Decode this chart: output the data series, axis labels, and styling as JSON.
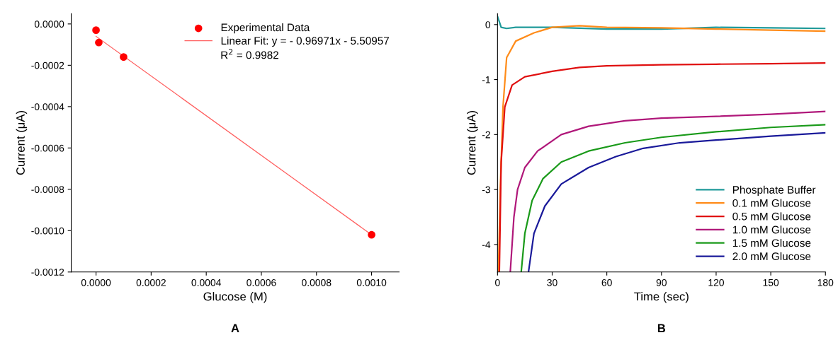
{
  "chart_data": [
    {
      "type": "scatter",
      "xlabel": "Glucose (M)",
      "ylabel": "Current (μA)",
      "x": [
        0,
        1e-05,
        0.0001,
        0.001
      ],
      "xlim": [
        -9e-05,
        0.0011
      ],
      "ylim": [
        -0.0012,
        5e-05
      ],
      "xticks": [
        {
          "value": 0,
          "label": "0.0000"
        },
        {
          "value": 0.0002,
          "label": "0.0002"
        },
        {
          "value": 0.0004,
          "label": "0.0004"
        },
        {
          "value": 0.0006,
          "label": "0.0006"
        },
        {
          "value": 0.0008,
          "label": "0.0008"
        },
        {
          "value": 0.001,
          "label": "0.0010"
        }
      ],
      "yticks": [
        {
          "value": 0,
          "label": "0.0000"
        },
        {
          "value": -0.0002,
          "label": "-0.0002"
        },
        {
          "value": -0.0004,
          "label": "-0.0004"
        },
        {
          "value": -0.0006,
          "label": "-0.0006"
        },
        {
          "value": -0.0008,
          "label": "-0.0008"
        },
        {
          "value": -0.001,
          "label": "-0.0010"
        },
        {
          "value": -0.0012,
          "label": "-0.0012"
        }
      ],
      "series": [
        {
          "name": "Experimental Data",
          "color": "#ff0000",
          "type": "scatter",
          "marker": "circle",
          "values": [
            -3e-05,
            -9e-05,
            -0.00016,
            -0.00102
          ]
        },
        {
          "name": "Linear Fit: y = - 0.96971x - 5.50957",
          "color": "#ff6060",
          "type": "line",
          "x": [
            0,
            0.001
          ],
          "values": [
            -6e-05,
            -0.00102
          ]
        }
      ],
      "annotations": [
        "R$^{2}$ = 0.9982",
        "A"
      ],
      "legend": "top right",
      "grid": false
    },
    {
      "type": "line",
      "xlabel": "Time (sec)",
      "ylabel": "Current (μA)",
      "xlim": [
        0,
        180
      ],
      "ylim": [
        -4.5,
        0.2
      ],
      "xticks": [
        0,
        30,
        60,
        90,
        120,
        150,
        180
      ],
      "yticks": [
        {
          "value": 0,
          "label": "0"
        },
        {
          "value": -1,
          "label": "-1"
        },
        {
          "value": -2,
          "label": "-2"
        },
        {
          "value": -3,
          "label": "-3"
        },
        {
          "value": -4,
          "label": "-4"
        }
      ],
      "series": [
        {
          "name": "Phosphate Buffer",
          "color": "#1f9a9a",
          "x": [
            0,
            2,
            5,
            10,
            30,
            60,
            90,
            120,
            150,
            180
          ],
          "values": [
            0.15,
            -0.05,
            -0.07,
            -0.05,
            -0.05,
            -0.08,
            -0.08,
            -0.05,
            -0.06,
            -0.07
          ]
        },
        {
          "name": "0.1 mM Glucose",
          "color": "#ff8c1a",
          "x": [
            0.5,
            1.5,
            3,
            5,
            10,
            20,
            30,
            45,
            60,
            90,
            120,
            150,
            180
          ],
          "values": [
            -4.5,
            -3,
            -1.5,
            -0.6,
            -0.3,
            -0.15,
            -0.05,
            -0.02,
            -0.05,
            -0.06,
            -0.08,
            -0.1,
            -0.12
          ]
        },
        {
          "name": "0.5 mM Glucose",
          "color": "#e01010",
          "x": [
            1,
            2,
            4,
            8,
            15,
            30,
            45,
            60,
            90,
            120,
            150,
            180
          ],
          "values": [
            -4.5,
            -2.5,
            -1.5,
            -1.1,
            -0.95,
            -0.85,
            -0.78,
            -0.75,
            -0.73,
            -0.72,
            -0.71,
            -0.7
          ]
        },
        {
          "name": "1.0 mM Glucose",
          "color": "#b0187a",
          "x": [
            7,
            9,
            11,
            15,
            22,
            35,
            50,
            70,
            90,
            120,
            150,
            180
          ],
          "values": [
            -4.5,
            -3.5,
            -3,
            -2.6,
            -2.3,
            -2,
            -1.85,
            -1.75,
            -1.7,
            -1.67,
            -1.63,
            -1.58
          ]
        },
        {
          "name": "1.5 mM Glucose",
          "color": "#1a9a1a",
          "x": [
            13,
            15,
            19,
            25,
            35,
            50,
            70,
            90,
            120,
            150,
            180
          ],
          "values": [
            -4.5,
            -3.8,
            -3.2,
            -2.8,
            -2.5,
            -2.3,
            -2.15,
            -2.05,
            -1.95,
            -1.87,
            -1.82
          ]
        },
        {
          "name": "2.0 mM Glucose",
          "color": "#1a1a9a",
          "x": [
            17,
            20,
            26,
            35,
            50,
            65,
            80,
            100,
            120,
            150,
            180
          ],
          "values": [
            -4.5,
            -3.8,
            -3.3,
            -2.9,
            -2.6,
            -2.4,
            -2.25,
            -2.15,
            -2.1,
            -2.03,
            -1.97
          ]
        }
      ],
      "annotations": [
        "B"
      ],
      "legend": "bottom right",
      "grid": false,
      "marker": "none",
      "line_style": "solid"
    }
  ]
}
